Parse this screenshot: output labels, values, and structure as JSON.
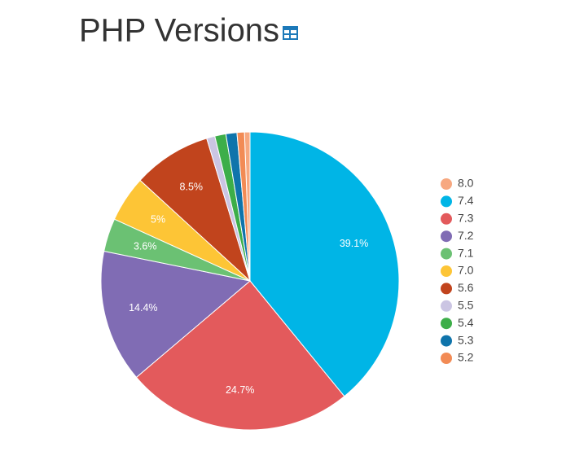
{
  "chart_data": {
    "type": "pie",
    "title": "PHP Versions",
    "categories": [
      "8.0",
      "7.4",
      "7.3",
      "7.2",
      "7.1",
      "7.0",
      "5.6",
      "5.5",
      "5.4",
      "5.3",
      "5.2"
    ],
    "values": [
      0.6,
      39.1,
      24.7,
      14.4,
      3.6,
      5,
      8.5,
      0.9,
      1.2,
      1.2,
      0.8
    ],
    "value_labels": [
      null,
      "39.1%",
      "24.7%",
      "14.4%",
      "3.6%",
      "5%",
      "8.5%",
      null,
      null,
      null,
      null
    ],
    "colors": [
      "#f7a880",
      "#00b5e6",
      "#e35a5c",
      "#806cb4",
      "#6bc173",
      "#fdc536",
      "#c1441d",
      "#cbc5e3",
      "#3dae49",
      "#0f74ab",
      "#f28b55"
    ],
    "legend": "right"
  }
}
